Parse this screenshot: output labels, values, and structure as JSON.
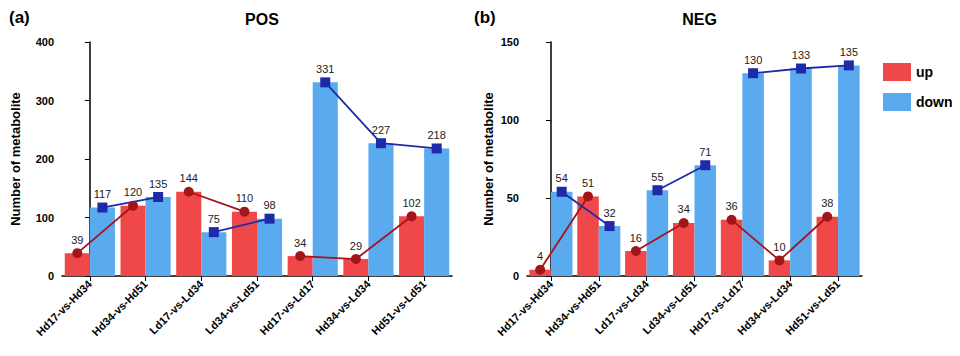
{
  "chart_data": [
    {
      "type": "bar",
      "panel_label": "(a)",
      "title": "POS",
      "y_label": "Number of metabolite",
      "categories": [
        "Hd17-vs-Hd34",
        "Hd34-vs-Hd51",
        "Ld17-vs-Ld34",
        "Ld34-vs-Ld51",
        "Hd17-vs-Ld17",
        "Hd34-vs-Ld34",
        "Hd51-vs-Ld51"
      ],
      "series": [
        {
          "name": "up",
          "color": "#f04848",
          "marker": "circle",
          "values": [
            39,
            120,
            144,
            110,
            34,
            29,
            102
          ]
        },
        {
          "name": "down",
          "color": "#5aaaf0",
          "marker": "square",
          "values": [
            117,
            135,
            75,
            98,
            331,
            227,
            218
          ]
        }
      ],
      "line_segments": [
        [
          0,
          1
        ],
        [
          2,
          3
        ],
        [
          4,
          5,
          6
        ]
      ],
      "ylim": [
        0,
        400
      ],
      "yticks": [
        0,
        100,
        200,
        300,
        400
      ],
      "grid": false,
      "data_labels": true,
      "legend": "right"
    },
    {
      "type": "bar",
      "panel_label": "(b)",
      "title": "NEG",
      "y_label": "Number of metabolite",
      "categories": [
        "Hd17-vs-Hd34",
        "Hd34-vs-Hd51",
        "Ld17-vs-Ld34",
        "Ld34-vs-Ld51",
        "Hd17-vs-Ld17",
        "Hd34-vs-Ld34",
        "Hd51-vs-Ld51"
      ],
      "series": [
        {
          "name": "up",
          "color": "#f04848",
          "marker": "circle",
          "values": [
            4,
            51,
            16,
            34,
            36,
            10,
            38
          ]
        },
        {
          "name": "down",
          "color": "#5aaaf0",
          "marker": "square",
          "values": [
            54,
            32,
            55,
            71,
            130,
            133,
            135
          ]
        }
      ],
      "line_segments": [
        [
          0,
          1
        ],
        [
          2,
          3
        ],
        [
          4,
          5,
          6
        ]
      ],
      "ylim": [
        0,
        150
      ],
      "yticks": [
        0,
        50,
        100,
        150
      ],
      "grid": false,
      "data_labels": true,
      "legend": "right"
    }
  ]
}
